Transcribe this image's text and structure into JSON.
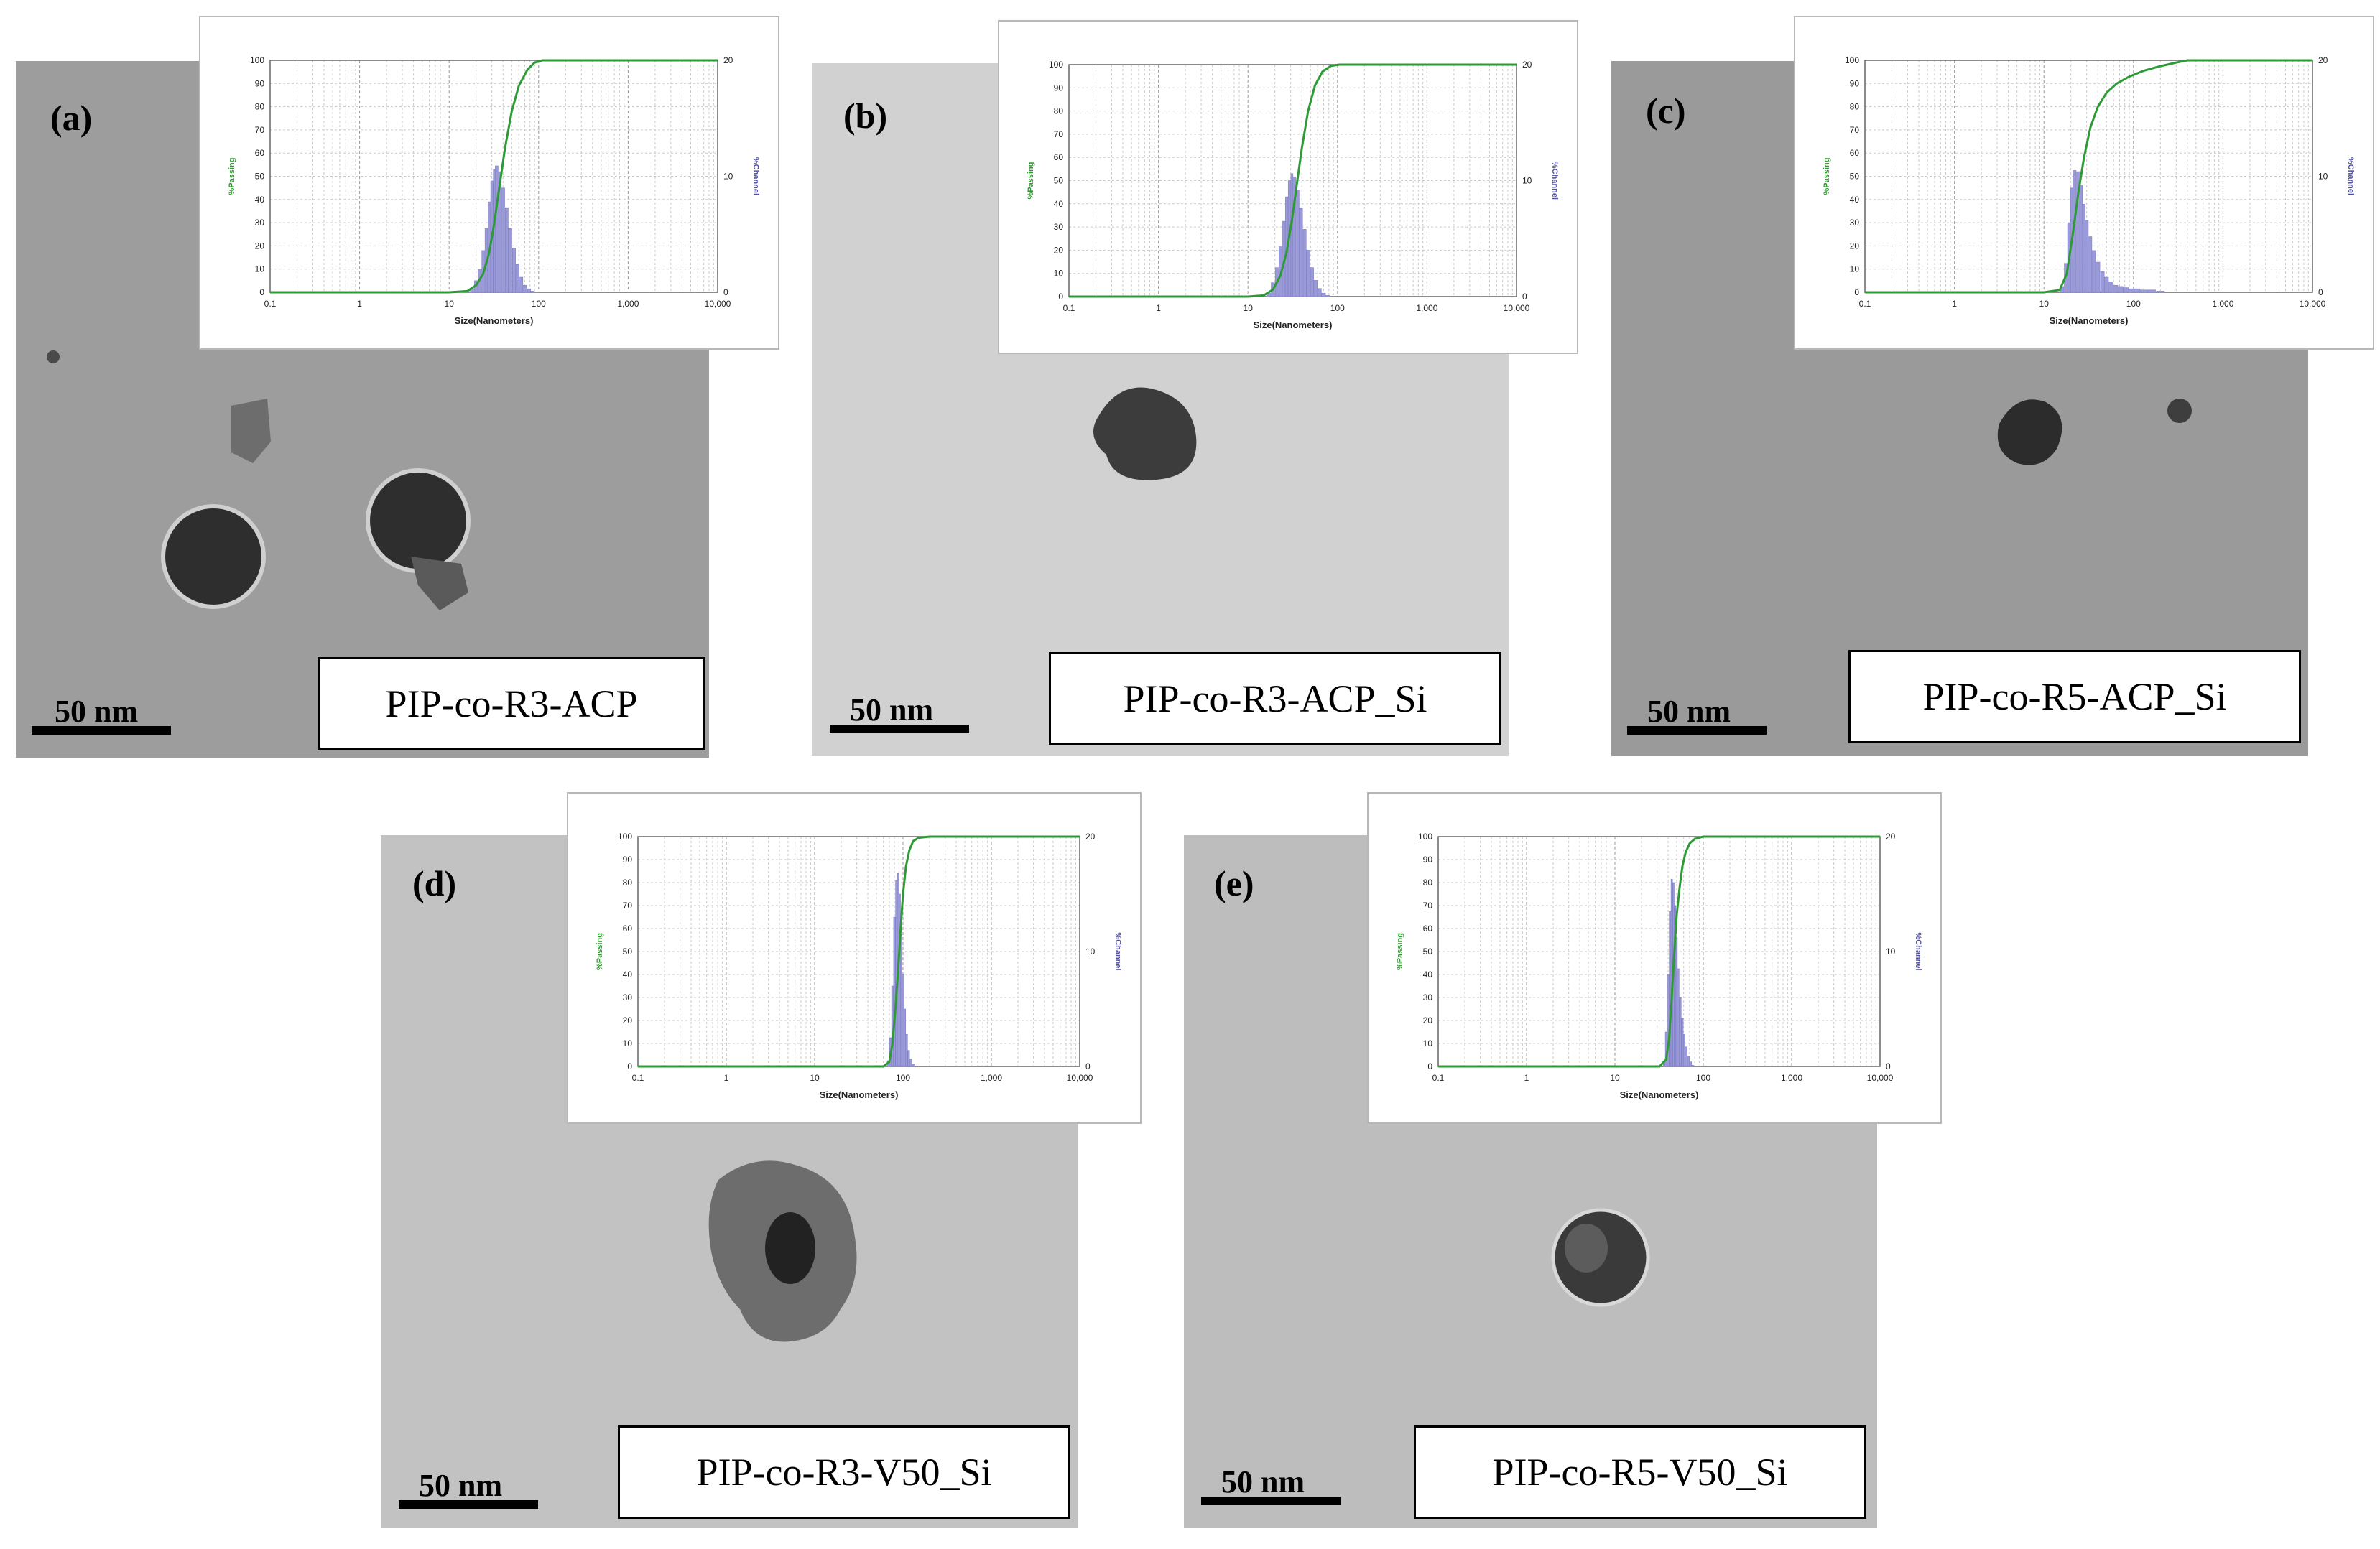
{
  "figure": {
    "panels": [
      {
        "letter": "(a)",
        "label": "PIP-co-R3-ACP",
        "scale": "50 nm"
      },
      {
        "letter": "(b)",
        "label": "PIP-co-R3-ACP_Si",
        "scale": "50 nm"
      },
      {
        "letter": "(c)",
        "label": "PIP-co-R5-ACP_Si",
        "scale": "50 nm"
      },
      {
        "letter": "(d)",
        "label": "PIP-co-R3-V50_Si",
        "scale": "50 nm"
      },
      {
        "letter": "(e)",
        "label": "PIP-co-R5-V50_Si",
        "scale": "50 nm"
      }
    ]
  },
  "chart_data": [
    {
      "type": "bar",
      "panel": "(a)",
      "xlabel": "Size(Nanometers)",
      "ylabel_left": "%Passing",
      "ylabel_right": "%Channel",
      "x_scale": "log",
      "x_ticks": [
        "0.1",
        "1",
        "10",
        "100",
        "1,000",
        "10,000"
      ],
      "y_left_ticks": [
        "0",
        "10",
        "20",
        "30",
        "40",
        "50",
        "60",
        "70",
        "80",
        "90",
        "100"
      ],
      "y_right_ticks": [
        "0",
        "10",
        "20"
      ],
      "ylim_left": [
        0,
        100
      ],
      "ylim_right": [
        0,
        20
      ],
      "colors": {
        "passing": "#2e9a36",
        "channel": "#9a9ad8"
      },
      "channel": {
        "x": [
          18,
          20,
          22,
          24,
          26,
          28,
          30,
          32,
          34,
          37,
          40,
          44,
          48,
          53,
          58,
          64,
          70,
          78,
          86
        ],
        "y": [
          0.3,
          1.0,
          2.0,
          3.6,
          5.5,
          7.8,
          9.6,
          10.6,
          10.9,
          10.4,
          9.0,
          7.3,
          5.5,
          3.8,
          2.4,
          1.3,
          0.6,
          0.3,
          0.1
        ]
      },
      "passing": {
        "x": [
          0.1,
          10,
          16,
          20,
          24,
          28,
          32,
          36,
          42,
          50,
          60,
          75,
          90,
          110,
          10000
        ],
        "y": [
          0,
          0,
          0.5,
          3,
          8,
          17,
          30,
          44,
          62,
          78,
          89,
          96,
          99,
          100,
          100
        ]
      }
    },
    {
      "type": "bar",
      "panel": "(b)",
      "xlabel": "Size(Nanometers)",
      "ylabel_left": "%Passing",
      "ylabel_right": "%Channel",
      "x_scale": "log",
      "x_ticks": [
        "0.1",
        "1",
        "10",
        "100",
        "1,000",
        "10,000"
      ],
      "y_left_ticks": [
        "0",
        "10",
        "20",
        "30",
        "40",
        "50",
        "60",
        "70",
        "80",
        "90",
        "100"
      ],
      "y_right_ticks": [
        "0",
        "10",
        "20"
      ],
      "ylim_left": [
        0,
        100
      ],
      "ylim_right": [
        0,
        20
      ],
      "colors": {
        "passing": "#2e9a36",
        "channel": "#9a9ad8"
      },
      "channel": {
        "x": [
          17,
          19,
          21,
          23,
          25,
          27,
          29,
          31,
          33,
          36,
          39,
          43,
          47,
          52,
          57,
          63,
          70,
          78
        ],
        "y": [
          0.3,
          1.2,
          2.5,
          4.3,
          6.5,
          8.6,
          10.0,
          10.6,
          10.3,
          9.2,
          7.6,
          5.8,
          4.0,
          2.5,
          1.4,
          0.7,
          0.3,
          0.1
        ]
      },
      "passing": {
        "x": [
          0.1,
          10,
          15,
          19,
          23,
          27,
          31,
          35,
          40,
          47,
          56,
          68,
          85,
          105,
          10000
        ],
        "y": [
          0,
          0,
          0.5,
          3,
          9,
          19,
          33,
          48,
          64,
          80,
          91,
          97,
          99.5,
          100,
          100
        ]
      }
    },
    {
      "type": "bar",
      "panel": "(c)",
      "xlabel": "Size(Nanometers)",
      "ylabel_left": "%Passing",
      "ylabel_right": "%Channel",
      "x_scale": "log",
      "x_ticks": [
        "0.1",
        "1",
        "10",
        "100",
        "1,000",
        "10,000"
      ],
      "y_left_ticks": [
        "0",
        "10",
        "20",
        "30",
        "40",
        "50",
        "60",
        "70",
        "80",
        "90",
        "100"
      ],
      "y_right_ticks": [
        "0",
        "10",
        "20"
      ],
      "ylim_left": [
        0,
        100
      ],
      "ylim_right": [
        0,
        20
      ],
      "colors": {
        "passing": "#2e9a36",
        "channel": "#9a9ad8"
      },
      "channel": {
        "x": [
          16,
          17.5,
          19,
          20.5,
          22,
          24,
          26,
          28,
          30,
          33,
          36,
          40,
          45,
          50,
          56,
          63,
          72,
          82,
          95,
          110,
          130,
          160,
          200
        ],
        "y": [
          0.5,
          2.5,
          6.0,
          9.0,
          10.5,
          10.4,
          9.2,
          7.6,
          6.2,
          4.8,
          3.6,
          2.6,
          1.8,
          1.3,
          0.9,
          0.6,
          0.5,
          0.4,
          0.3,
          0.3,
          0.2,
          0.2,
          0.1
        ]
      },
      "passing": {
        "x": [
          0.1,
          10,
          15,
          18,
          21,
          24,
          28,
          33,
          40,
          50,
          65,
          90,
          130,
          200,
          300,
          400,
          10000
        ],
        "y": [
          0,
          0,
          1,
          8,
          25,
          42,
          58,
          71,
          80,
          86,
          90,
          93,
          95.5,
          97.5,
          99,
          100,
          100
        ]
      }
    },
    {
      "type": "bar",
      "panel": "(d)",
      "xlabel": "Size(Nanometers)",
      "ylabel_left": "%Passing",
      "ylabel_right": "%Channel",
      "x_scale": "log",
      "x_ticks": [
        "0.1",
        "1",
        "10",
        "100",
        "1,000",
        "10,000"
      ],
      "y_left_ticks": [
        "0",
        "10",
        "20",
        "30",
        "40",
        "50",
        "60",
        "70",
        "80",
        "90",
        "100"
      ],
      "y_right_ticks": [
        "0",
        "10",
        "20"
      ],
      "ylim_left": [
        0,
        100
      ],
      "ylim_right": [
        0,
        20
      ],
      "colors": {
        "passing": "#2e9a36",
        "channel": "#9a9ad8"
      },
      "channel": {
        "x": [
          68,
          72,
          76,
          80,
          84,
          88,
          92,
          96,
          100,
          105,
          110,
          116,
          122,
          130
        ],
        "y": [
          0.5,
          2.5,
          7.0,
          13.0,
          16.2,
          16.8,
          15.0,
          11.5,
          8.0,
          5.0,
          2.8,
          1.4,
          0.6,
          0.2
        ]
      },
      "passing": {
        "x": [
          0.1,
          60,
          70,
          76,
          82,
          88,
          94,
          100,
          108,
          118,
          130,
          150,
          200,
          10000
        ],
        "y": [
          0,
          0,
          2,
          10,
          25,
          42,
          60,
          75,
          87,
          94,
          98,
          99.5,
          100,
          100
        ]
      }
    },
    {
      "type": "bar",
      "panel": "(e)",
      "xlabel": "Size(Nanometers)",
      "ylabel_left": "%Passing",
      "ylabel_right": "%Channel",
      "x_scale": "log",
      "x_ticks": [
        "0.1",
        "1",
        "10",
        "100",
        "1,000",
        "10,000"
      ],
      "y_left_ticks": [
        "0",
        "10",
        "20",
        "30",
        "40",
        "50",
        "60",
        "70",
        "80",
        "90",
        "100"
      ],
      "y_right_ticks": [
        "0",
        "10",
        "20"
      ],
      "ylim_left": [
        0,
        100
      ],
      "ylim_right": [
        0,
        20
      ],
      "colors": {
        "passing": "#2e9a36",
        "channel": "#9a9ad8"
      },
      "channel": {
        "x": [
          36,
          38,
          40,
          42,
          44,
          46,
          48,
          50,
          52,
          55,
          58,
          61,
          64,
          68,
          72,
          76
        ],
        "y": [
          0.5,
          3.0,
          8.0,
          13.5,
          16.3,
          16.0,
          14.0,
          11.2,
          8.5,
          6.0,
          4.2,
          2.8,
          1.7,
          0.9,
          0.4,
          0.1
        ]
      },
      "passing": {
        "x": [
          0.1,
          32,
          38,
          41,
          44,
          47,
          50,
          54,
          58,
          63,
          70,
          80,
          100,
          10000
        ],
        "y": [
          0,
          0,
          3,
          12,
          30,
          50,
          66,
          78,
          87,
          93,
          97,
          99,
          100,
          100
        ]
      }
    }
  ]
}
